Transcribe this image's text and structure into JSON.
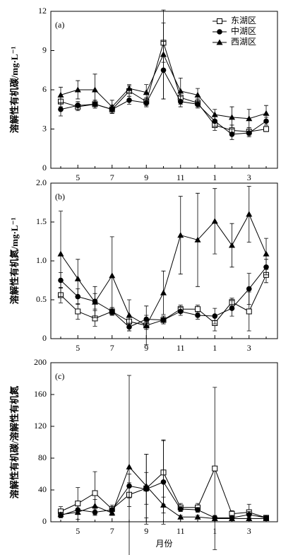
{
  "chart_data": [
    {
      "type": "line",
      "label": "(a)",
      "y_label": "溶解性有机碳/mg·L⁻¹",
      "categories": [
        null,
        "5",
        null,
        "7",
        null,
        "9",
        null,
        "11",
        null,
        "1",
        null,
        "3",
        null
      ],
      "ylim": [
        0,
        12
      ],
      "yticks": [
        0,
        3,
        6,
        9,
        12
      ],
      "legend": "upper right",
      "series": [
        {
          "name": "东湖区",
          "marker": "square-open",
          "color": "#000000",
          "values": [
            5.1,
            4.7,
            4.9,
            4.5,
            5.9,
            5.1,
            9.6,
            5.4,
            5.0,
            3.3,
            2.9,
            2.8,
            3.0
          ],
          "errors": [
            0.4,
            0.3,
            0.3,
            0.3,
            0.4,
            0.3,
            1.5,
            0.4,
            0.3,
            0.4,
            0.4,
            0.3,
            0.2
          ]
        },
        {
          "name": "中湖区",
          "marker": "circle",
          "color": "#000000",
          "values": [
            4.5,
            4.8,
            4.9,
            4.5,
            5.2,
            5.0,
            7.5,
            5.1,
            4.9,
            3.6,
            2.6,
            2.7,
            3.6
          ],
          "errors": [
            0.5,
            0.3,
            0.3,
            0.3,
            0.3,
            0.3,
            2.2,
            0.4,
            0.3,
            0.4,
            0.4,
            0.3,
            0.3
          ]
        },
        {
          "name": "西湖区",
          "marker": "triangle",
          "color": "#000000",
          "values": [
            5.6,
            6.0,
            6.0,
            4.7,
            6.1,
            5.8,
            8.7,
            5.9,
            5.6,
            4.1,
            3.9,
            3.8,
            4.2
          ],
          "errors": [
            0.6,
            0.7,
            1.2,
            0.5,
            0.3,
            0.6,
            3.4,
            1.0,
            0.5,
            0.4,
            0.8,
            0.7,
            0.6
          ]
        }
      ]
    },
    {
      "type": "line",
      "label": "(b)",
      "y_label": "溶解性有机氮/mg·L⁻¹",
      "categories": [
        null,
        "5",
        null,
        "7",
        null,
        "9",
        null,
        "11",
        null,
        "1",
        null,
        "3",
        null
      ],
      "ylim": [
        0,
        2
      ],
      "yticks": [
        0,
        0.5,
        {
          "value": 1,
          "label": "1.0"
        },
        1.5,
        {
          "value": 2,
          "label": "2.0"
        }
      ],
      "series": [
        {
          "marker": "square-open",
          "color": "#000000",
          "values": [
            0.56,
            0.35,
            0.26,
            0.35,
            0.22,
            0.17,
            0.24,
            0.38,
            0.38,
            0.2,
            0.47,
            0.35,
            0.82
          ],
          "errors": [
            0.1,
            0.1,
            0.1,
            0.05,
            0.08,
            0.05,
            0.05,
            0.05,
            0.05,
            0.1,
            0.05,
            0.25,
            0.1
          ]
        },
        {
          "marker": "circle",
          "color": "#000000",
          "values": [
            0.75,
            0.54,
            0.48,
            0.35,
            0.15,
            0.25,
            0.24,
            0.35,
            0.3,
            0.29,
            0.39,
            0.64,
            0.92
          ],
          "errors": [
            0.1,
            0.1,
            0.1,
            0.05,
            0.05,
            0.05,
            0.05,
            0.05,
            0.05,
            0.1,
            0.1,
            0.2,
            0.1
          ]
        },
        {
          "marker": "triangle",
          "color": "#000000",
          "values": [
            1.09,
            0.77,
            0.47,
            0.81,
            0.3,
            0.17,
            0.59,
            1.33,
            1.27,
            1.51,
            1.2,
            1.6,
            1.09
          ],
          "errors": [
            0.55,
            0.25,
            0.2,
            0.5,
            0.2,
            0.25,
            0.28,
            0.5,
            0.6,
            0.42,
            0.28,
            0.36,
            0.2
          ]
        }
      ]
    },
    {
      "type": "line",
      "label": "(c)",
      "y_label": "溶解性有机碳/溶解性有机氮",
      "x_label": "月份",
      "categories": [
        null,
        "5",
        null,
        "7",
        null,
        "9",
        null,
        "11",
        null,
        "1",
        null,
        "3",
        null
      ],
      "ylim": [
        0,
        200
      ],
      "yticks": [
        0,
        40,
        80,
        120,
        160,
        200
      ],
      "series": [
        {
          "marker": "square-open",
          "color": "#000000",
          "values": [
            13,
            23,
            36,
            16,
            34,
            42,
            62,
            18,
            18,
            67,
            10,
            12,
            5
          ],
          "errors": [
            6,
            20,
            27,
            5,
            15,
            20,
            40,
            5,
            5,
            102,
            4,
            10,
            2
          ]
        },
        {
          "marker": "circle",
          "color": "#000000",
          "values": [
            8,
            15,
            12,
            15,
            45,
            41,
            50,
            16,
            15,
            5,
            5,
            9,
            5
          ],
          "errors": [
            3,
            5,
            4,
            4,
            15,
            44,
            53,
            3,
            3,
            3,
            3,
            4,
            2
          ]
        },
        {
          "marker": "triangle",
          "color": "#000000",
          "values": [
            9,
            12,
            20,
            11,
            69,
            45,
            21,
            6,
            6,
            4,
            4,
            4,
            4
          ],
          "errors": [
            3,
            3,
            8,
            3,
            115,
            40,
            10,
            2,
            2,
            2,
            2,
            2,
            2
          ]
        }
      ]
    }
  ]
}
